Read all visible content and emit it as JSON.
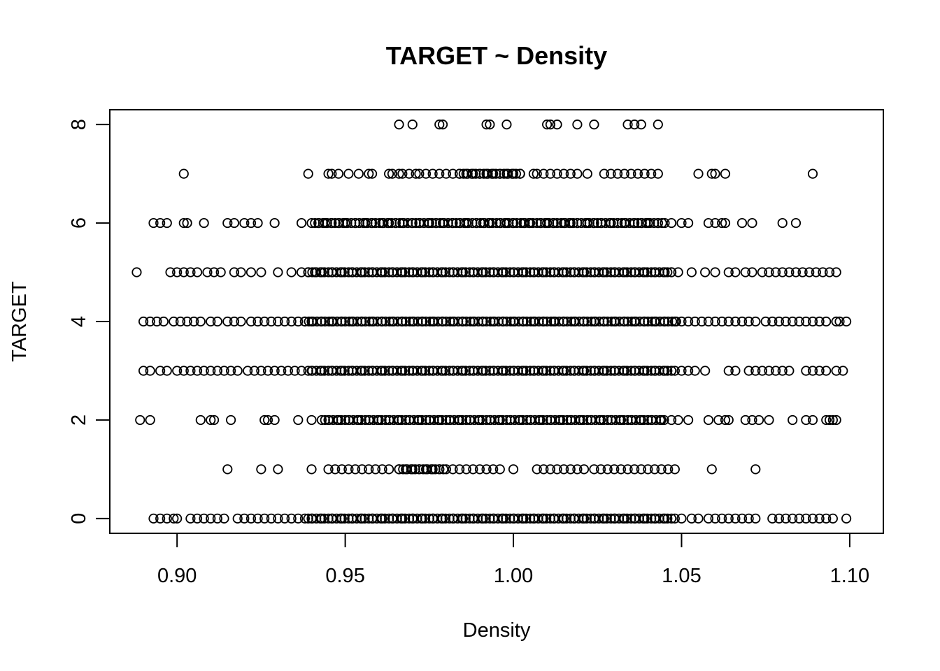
{
  "chart_data": {
    "type": "scatter",
    "title": "TARGET ~ Density",
    "xlabel": "Density",
    "ylabel": "TARGET",
    "xlim": [
      0.88,
      1.11
    ],
    "ylim": [
      -0.3,
      8.3
    ],
    "x_ticks": [
      0.9,
      0.95,
      1.0,
      1.05,
      1.1
    ],
    "x_tick_labels": [
      "0.90",
      "0.95",
      "1.00",
      "1.05",
      "1.10"
    ],
    "y_ticks": [
      0,
      2,
      4,
      6,
      8
    ],
    "y_tick_labels": [
      "0",
      "2",
      "4",
      "6",
      "8"
    ],
    "grid": false,
    "marker": "open-circle",
    "color": "#000000",
    "rows": [
      {
        "target": 8,
        "density": [
          0.966,
          0.97,
          0.978,
          0.979,
          0.992,
          0.993,
          0.998,
          1.01,
          1.011,
          1.013,
          1.019,
          1.024,
          1.034,
          1.036,
          1.038,
          1.043
        ]
      },
      {
        "target": 7,
        "density": [
          0.902,
          0.939,
          0.945,
          0.946,
          0.948,
          0.951,
          0.954,
          0.957,
          0.958,
          0.963,
          0.964,
          0.966,
          0.967,
          0.969,
          0.971,
          0.972,
          0.974,
          0.976,
          0.978,
          0.98,
          0.982,
          0.984,
          0.986,
          0.988,
          0.99,
          0.992,
          0.994,
          0.996,
          0.998,
          1.0,
          1.002,
          1.006,
          1.007,
          1.009,
          1.011,
          1.013,
          1.015,
          1.017,
          1.019,
          1.022,
          1.027,
          1.029,
          1.031,
          1.033,
          1.035,
          1.037,
          1.039,
          1.041,
          1.043,
          1.055,
          1.059,
          1.06,
          1.063,
          1.089
        ]
      },
      {
        "target": 6,
        "density": [
          0.893,
          0.895,
          0.897,
          0.902,
          0.903,
          0.908,
          0.915,
          0.917,
          0.92,
          0.922,
          0.924,
          0.929,
          0.937,
          0.94,
          0.942,
          0.944,
          0.946,
          0.948,
          0.95,
          0.953,
          0.956,
          0.958,
          0.961,
          0.963,
          0.965,
          0.967,
          0.97,
          0.972,
          0.975,
          0.977,
          0.979,
          0.982,
          0.984,
          0.986,
          0.989,
          0.991,
          0.993,
          0.996,
          0.998,
          1.0,
          1.003,
          1.005,
          1.008,
          1.01,
          1.012,
          1.015,
          1.017,
          1.019,
          1.022,
          1.024,
          1.026,
          1.029,
          1.031,
          1.033,
          1.036,
          1.038,
          1.04,
          1.043,
          1.045,
          1.047,
          1.05,
          1.052,
          1.058,
          1.06,
          1.062,
          1.063,
          1.068,
          1.071,
          1.08,
          1.084
        ]
      },
      {
        "target": 5,
        "density": [
          0.888,
          0.898,
          0.9,
          0.902,
          0.904,
          0.906,
          0.909,
          0.911,
          0.913,
          0.917,
          0.919,
          0.922,
          0.925,
          0.93,
          0.934,
          0.937,
          0.939,
          0.941,
          0.943,
          0.946,
          0.949,
          0.952,
          0.955,
          0.958,
          0.961,
          0.964,
          0.967,
          0.97,
          0.973,
          0.976,
          0.979,
          0.982,
          0.985,
          0.988,
          0.991,
          0.994,
          0.997,
          1.0,
          1.003,
          1.006,
          1.009,
          1.012,
          1.015,
          1.018,
          1.021,
          1.024,
          1.027,
          1.03,
          1.033,
          1.036,
          1.039,
          1.042,
          1.045,
          1.047,
          1.049,
          1.053,
          1.057,
          1.06,
          1.064,
          1.066,
          1.069,
          1.071,
          1.074,
          1.076,
          1.078,
          1.08,
          1.082,
          1.084,
          1.086,
          1.088,
          1.09,
          1.092,
          1.094,
          1.096
        ]
      },
      {
        "target": 4,
        "density": [
          0.89,
          0.892,
          0.894,
          0.896,
          0.899,
          0.901,
          0.903,
          0.905,
          0.907,
          0.91,
          0.912,
          0.915,
          0.917,
          0.919,
          0.922,
          0.924,
          0.926,
          0.928,
          0.93,
          0.932,
          0.934,
          0.936,
          0.938,
          0.94,
          0.943,
          0.946,
          0.949,
          0.952,
          0.955,
          0.958,
          0.961,
          0.964,
          0.967,
          0.97,
          0.973,
          0.976,
          0.979,
          0.982,
          0.985,
          0.988,
          0.991,
          0.994,
          0.997,
          1.0,
          1.003,
          1.006,
          1.009,
          1.012,
          1.015,
          1.018,
          1.021,
          1.024,
          1.027,
          1.03,
          1.033,
          1.036,
          1.039,
          1.042,
          1.045,
          1.048,
          1.05,
          1.052,
          1.054,
          1.056,
          1.058,
          1.06,
          1.062,
          1.064,
          1.066,
          1.068,
          1.07,
          1.072,
          1.075,
          1.077,
          1.079,
          1.081,
          1.083,
          1.085,
          1.087,
          1.089,
          1.091,
          1.093,
          1.096,
          1.097,
          1.099
        ]
      },
      {
        "target": 3,
        "density": [
          0.89,
          0.892,
          0.895,
          0.897,
          0.9,
          0.902,
          0.904,
          0.906,
          0.908,
          0.91,
          0.912,
          0.914,
          0.916,
          0.918,
          0.921,
          0.923,
          0.925,
          0.927,
          0.929,
          0.931,
          0.933,
          0.935,
          0.937,
          0.94,
          0.943,
          0.946,
          0.949,
          0.952,
          0.955,
          0.958,
          0.961,
          0.964,
          0.967,
          0.97,
          0.973,
          0.976,
          0.979,
          0.982,
          0.985,
          0.988,
          0.991,
          0.994,
          0.997,
          1.0,
          1.003,
          1.006,
          1.009,
          1.012,
          1.015,
          1.018,
          1.021,
          1.024,
          1.027,
          1.03,
          1.033,
          1.036,
          1.039,
          1.042,
          1.045,
          1.048,
          1.05,
          1.052,
          1.054,
          1.057,
          1.064,
          1.066,
          1.07,
          1.072,
          1.074,
          1.076,
          1.078,
          1.08,
          1.082,
          1.087,
          1.089,
          1.091,
          1.093,
          1.096,
          1.098
        ]
      },
      {
        "target": 2,
        "density": [
          0.889,
          0.892,
          0.907,
          0.91,
          0.911,
          0.916,
          0.926,
          0.927,
          0.929,
          0.936,
          0.94,
          0.943,
          0.945,
          0.948,
          0.951,
          0.954,
          0.957,
          0.96,
          0.963,
          0.966,
          0.969,
          0.972,
          0.975,
          0.978,
          0.981,
          0.984,
          0.987,
          0.99,
          0.993,
          0.996,
          0.999,
          1.002,
          1.005,
          1.008,
          1.011,
          1.014,
          1.017,
          1.02,
          1.023,
          1.026,
          1.029,
          1.032,
          1.035,
          1.038,
          1.041,
          1.044,
          1.047,
          1.049,
          1.052,
          1.058,
          1.061,
          1.063,
          1.064,
          1.069,
          1.071,
          1.073,
          1.076,
          1.083,
          1.087,
          1.089,
          1.093,
          1.094,
          1.095,
          1.096
        ]
      },
      {
        "target": 1,
        "density": [
          0.915,
          0.925,
          0.93,
          0.94,
          0.945,
          0.947,
          0.949,
          0.951,
          0.953,
          0.955,
          0.957,
          0.959,
          0.961,
          0.963,
          0.966,
          0.968,
          0.97,
          0.972,
          0.974,
          0.976,
          0.978,
          0.98,
          0.982,
          0.984,
          0.986,
          0.988,
          0.99,
          0.992,
          0.994,
          0.996,
          1.0,
          1.007,
          1.009,
          1.011,
          1.013,
          1.015,
          1.017,
          1.019,
          1.021,
          1.024,
          1.026,
          1.028,
          1.03,
          1.032,
          1.034,
          1.036,
          1.038,
          1.04,
          1.042,
          1.044,
          1.046,
          1.048,
          1.059,
          1.072
        ]
      },
      {
        "target": 0,
        "density": [
          0.893,
          0.895,
          0.897,
          0.899,
          0.9,
          0.904,
          0.906,
          0.908,
          0.91,
          0.912,
          0.914,
          0.918,
          0.92,
          0.922,
          0.924,
          0.926,
          0.928,
          0.93,
          0.932,
          0.934,
          0.936,
          0.938,
          0.94,
          0.943,
          0.946,
          0.949,
          0.952,
          0.955,
          0.958,
          0.961,
          0.964,
          0.967,
          0.97,
          0.973,
          0.976,
          0.979,
          0.982,
          0.985,
          0.988,
          0.991,
          0.994,
          0.997,
          1.0,
          1.003,
          1.006,
          1.009,
          1.012,
          1.015,
          1.018,
          1.021,
          1.024,
          1.027,
          1.03,
          1.033,
          1.036,
          1.039,
          1.042,
          1.045,
          1.048,
          1.05,
          1.053,
          1.055,
          1.058,
          1.06,
          1.062,
          1.064,
          1.066,
          1.068,
          1.07,
          1.072,
          1.077,
          1.079,
          1.081,
          1.083,
          1.085,
          1.087,
          1.089,
          1.091,
          1.093,
          1.095,
          1.099
        ]
      }
    ],
    "dense_bands": [
      {
        "target": 7,
        "from": 0.984,
        "to": 1.002
      },
      {
        "target": 6,
        "from": 0.941,
        "to": 1.045
      },
      {
        "target": 5,
        "from": 0.939,
        "to": 1.047
      },
      {
        "target": 4,
        "from": 0.938,
        "to": 1.049
      },
      {
        "target": 3,
        "from": 0.939,
        "to": 1.048
      },
      {
        "target": 2,
        "from": 0.944,
        "to": 1.045
      },
      {
        "target": 1,
        "from": 0.966,
        "to": 0.98
      },
      {
        "target": 0,
        "from": 0.939,
        "to": 1.048
      }
    ]
  }
}
